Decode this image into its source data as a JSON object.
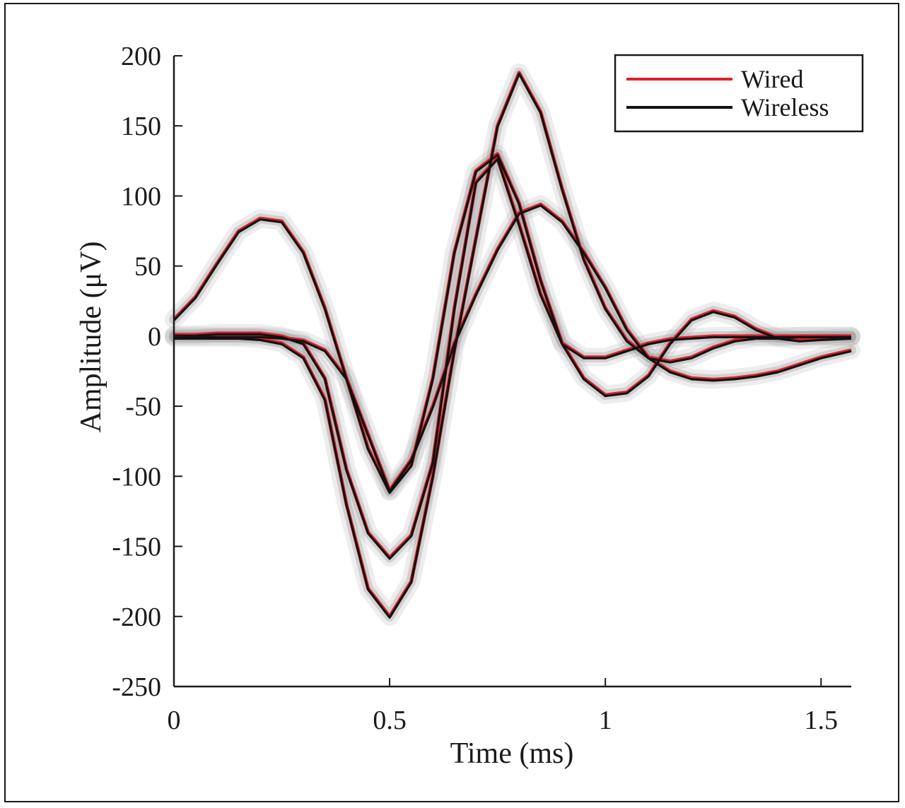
{
  "chart_data": {
    "type": "line",
    "xlabel": "Time (ms)",
    "ylabel": "Amplitude (μV)",
    "xlim": [
      0,
      1.57
    ],
    "ylim": [
      -250,
      200
    ],
    "xticks": [
      0,
      0.5,
      1,
      1.5
    ],
    "xtick_labels": [
      "0",
      "0.5",
      "1",
      "1.5"
    ],
    "yticks": [
      200,
      150,
      100,
      50,
      0,
      -50,
      -100,
      -150,
      -200,
      -250
    ],
    "ytick_labels": [
      "200",
      "150",
      "100",
      "50",
      "0",
      "-50",
      "-100",
      "-150",
      "-200",
      "-250"
    ],
    "grid": false,
    "legend_position": "top-right",
    "legend": [
      {
        "label": "Wired",
        "color": "#e0202a"
      },
      {
        "label": "Wireless",
        "color": "#111111"
      }
    ],
    "band_color": "#9a9a9a",
    "x": [
      0,
      0.05,
      0.1,
      0.15,
      0.2,
      0.25,
      0.3,
      0.35,
      0.4,
      0.45,
      0.5,
      0.55,
      0.6,
      0.65,
      0.7,
      0.75,
      0.8,
      0.85,
      0.9,
      0.95,
      1.0,
      1.05,
      1.1,
      1.15,
      1.2,
      1.25,
      1.3,
      1.35,
      1.4,
      1.45,
      1.5,
      1.57
    ],
    "series": [
      {
        "wired": [
          12,
          28,
          52,
          75,
          84,
          82,
          60,
          20,
          -30,
          -80,
          -111,
          -92,
          -30,
          60,
          118,
          130,
          95,
          40,
          -5,
          -30,
          -42,
          -40,
          -28,
          -5,
          12,
          18,
          14,
          5,
          -1,
          -3,
          -2,
          -1
        ],
        "wireless": [
          12,
          28,
          52,
          75,
          84,
          82,
          60,
          20,
          -30,
          -80,
          -111,
          -92,
          -30,
          60,
          118,
          130,
          95,
          40,
          -5,
          -30,
          -42,
          -40,
          -28,
          -5,
          12,
          18,
          14,
          5,
          -1,
          -3,
          -2,
          -1
        ]
      },
      {
        "wired": [
          1,
          1,
          2,
          2,
          2,
          0,
          -5,
          -30,
          -95,
          -140,
          -158,
          -142,
          -90,
          20,
          110,
          127,
          80,
          30,
          -5,
          -15,
          -15,
          -10,
          -5,
          -2,
          -1,
          0,
          0,
          0,
          0,
          0,
          0,
          0
        ],
        "wireless": [
          1,
          1,
          2,
          2,
          2,
          0,
          -5,
          -30,
          -95,
          -140,
          -158,
          -142,
          -90,
          20,
          110,
          127,
          80,
          30,
          -5,
          -15,
          -15,
          -10,
          -5,
          -2,
          -1,
          0,
          0,
          0,
          0,
          0,
          0,
          0
        ]
      },
      {
        "wired": [
          -1,
          -1,
          -1,
          -1,
          -2,
          -5,
          -15,
          -45,
          -120,
          -180,
          -200,
          -175,
          -100,
          -10,
          70,
          150,
          188,
          160,
          105,
          55,
          20,
          -3,
          -15,
          -18,
          -15,
          -8,
          -3,
          -1,
          -1,
          0,
          0,
          0
        ],
        "wireless": [
          -1,
          -1,
          -1,
          -1,
          -2,
          -5,
          -15,
          -45,
          -120,
          -180,
          -200,
          -175,
          -100,
          -10,
          70,
          150,
          188,
          160,
          105,
          55,
          20,
          -3,
          -15,
          -18,
          -15,
          -8,
          -3,
          -1,
          -1,
          0,
          0,
          0
        ]
      },
      {
        "wired": [
          0,
          0,
          0,
          0,
          0,
          -1,
          -3,
          -10,
          -30,
          -70,
          -110,
          -88,
          -50,
          -5,
          30,
          62,
          88,
          94,
          82,
          60,
          35,
          5,
          -15,
          -25,
          -30,
          -31,
          -30,
          -28,
          -25,
          -20,
          -15,
          -10
        ],
        "wireless": [
          0,
          0,
          0,
          0,
          0,
          -1,
          -3,
          -10,
          -30,
          -70,
          -110,
          -88,
          -50,
          -5,
          30,
          62,
          88,
          94,
          82,
          60,
          35,
          5,
          -15,
          -25,
          -30,
          -31,
          -30,
          -28,
          -25,
          -20,
          -15,
          -10
        ]
      }
    ]
  }
}
